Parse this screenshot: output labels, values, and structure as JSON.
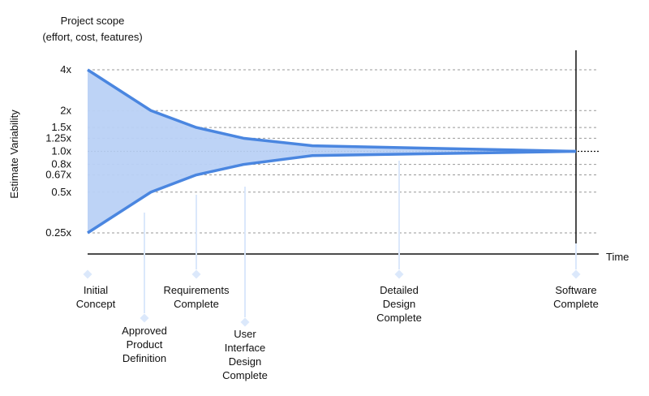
{
  "chart_data": {
    "type": "area",
    "title_lines": [
      "Project scope",
      "(effort, cost, features)"
    ],
    "ylabel": "Estimate Variability",
    "xlabel": "Time",
    "y_scale": "log",
    "y_ticks": [
      {
        "value": 4,
        "label": "4x"
      },
      {
        "value": 2,
        "label": "2x"
      },
      {
        "value": 1.5,
        "label": "1.5x"
      },
      {
        "value": 1.25,
        "label": "1.25x"
      },
      {
        "value": 1.0,
        "label": "1.0x"
      },
      {
        "value": 0.8,
        "label": "0.8x"
      },
      {
        "value": 0.67,
        "label": "0.67x"
      },
      {
        "value": 0.5,
        "label": "0.5x"
      },
      {
        "value": 0.25,
        "label": "0.25x"
      }
    ],
    "ylim": [
      0.2,
      5
    ],
    "grid": true,
    "milestones": [
      {
        "label": [
          "Initial",
          "Concept"
        ],
        "upper": 4,
        "lower": 0.25
      },
      {
        "label": [
          "Approved",
          "Product",
          "Definition"
        ],
        "upper": 2,
        "lower": 0.5
      },
      {
        "label": [
          "Requirements",
          "Complete"
        ],
        "upper": 1.5,
        "lower": 0.67
      },
      {
        "label": [
          "User",
          "Interface",
          "Design",
          "Complete"
        ],
        "upper": 1.25,
        "lower": 0.8
      },
      {
        "label": [
          "Detailed",
          "Design",
          "Complete"
        ],
        "upper": 1.1,
        "lower": 0.93
      },
      {
        "label": [
          "Software",
          "Complete"
        ],
        "upper": 1.0,
        "lower": 1.0
      }
    ],
    "colors": {
      "line": "#4a86e0",
      "fill": "#b9d1f5",
      "marker": "#dbe8fb",
      "grid": "#999999",
      "axis": "#111111"
    }
  }
}
